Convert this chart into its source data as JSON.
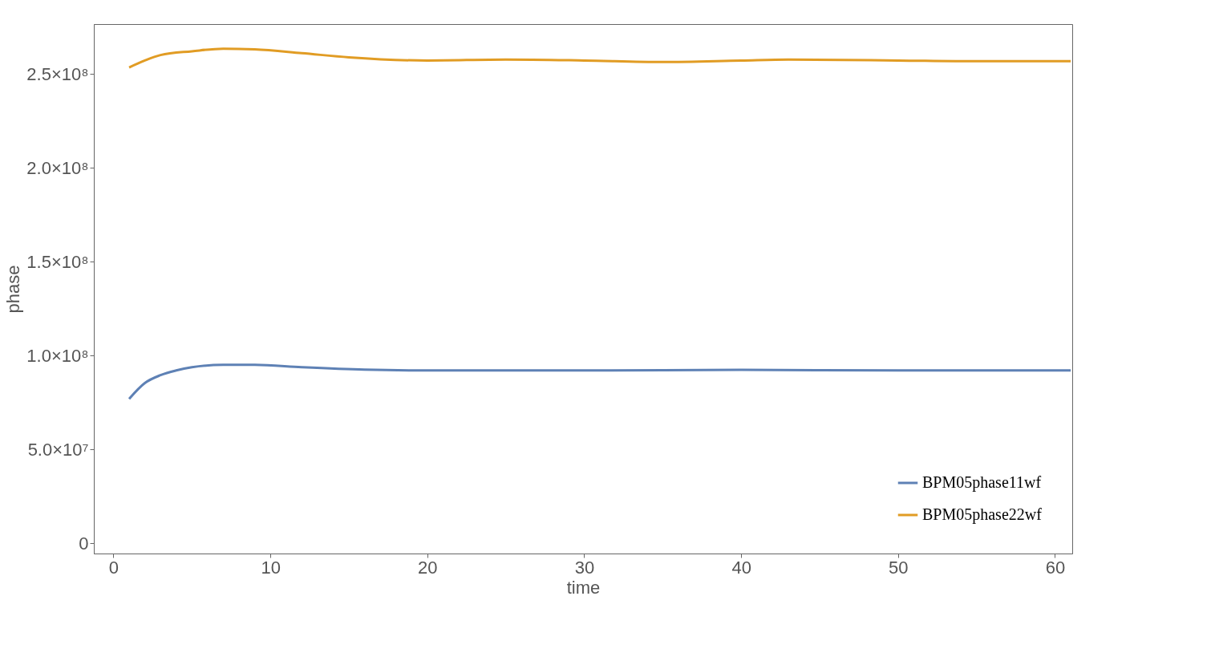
{
  "chart_data": {
    "type": "line",
    "xlabel": "time",
    "ylabel": "phase",
    "xlim": [
      -1.25,
      61.1
    ],
    "xticks": [
      0,
      10,
      20,
      30,
      40,
      50,
      60
    ],
    "ylim": [
      -5500000,
      276500000
    ],
    "yticks": [
      0,
      {
        "value": 50000000,
        "label": "5.0×10⁷"
      },
      {
        "value": 100000000,
        "label": "1.0×10⁸"
      },
      {
        "value": 150000000,
        "label": "1.5×10⁸"
      },
      {
        "value": 200000000,
        "label": "2.0×10⁸"
      },
      {
        "value": 250000000,
        "label": "2.5×10⁸"
      }
    ],
    "grid": false,
    "legend": "bottom right",
    "marker": "none",
    "line_style": "solid",
    "series": [
      {
        "name": "BPM05phase11wf",
        "color": "#5e81b5",
        "x": [
          1,
          2,
          3,
          4,
          5,
          7,
          9,
          12,
          16,
          20,
          30,
          40,
          50,
          60,
          61
        ],
        "values": [
          76900000,
          85300000,
          89500000,
          92000000,
          93700000,
          95000000,
          95000000,
          93700000,
          92400000,
          92000000,
          92000000,
          92300000,
          92000000,
          92000000,
          92000000
        ]
      },
      {
        "name": "BPM05phase22wf",
        "color": "#e19c24",
        "x": [
          1,
          2,
          3,
          5,
          7,
          9,
          12,
          15,
          20,
          25,
          30,
          35,
          40,
          43,
          50,
          55,
          60,
          61
        ],
        "values": [
          253400000,
          257100000,
          260000000,
          262000000,
          263400000,
          263000000,
          261000000,
          258800000,
          257100000,
          257600000,
          257100000,
          256300000,
          257100000,
          257600000,
          257100000,
          256700000,
          256700000,
          256700000
        ]
      }
    ]
  }
}
